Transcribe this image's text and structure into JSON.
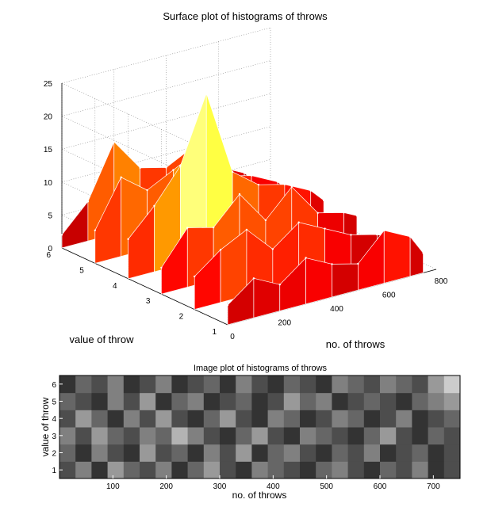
{
  "chart_data": [
    {
      "type": "surface",
      "title": "Surface plot of histograms of throws",
      "xlabel": "no. of throws",
      "ylabel": "value of throw",
      "zlabel": "",
      "xlim": [
        0,
        800
      ],
      "ylim": [
        1,
        6
      ],
      "zlim": [
        0,
        25
      ],
      "xticks": [
        "0",
        "200",
        "400",
        "600",
        "800"
      ],
      "yticks": [
        "1",
        "2",
        "3",
        "4",
        "5",
        "6"
      ],
      "zticks": [
        "0",
        "5",
        "10",
        "15",
        "20",
        "25"
      ],
      "grid": true,
      "colormap": "hot",
      "series": [
        {
          "y": 1,
          "x": [
            0,
            100,
            200,
            300,
            400,
            500,
            600,
            700,
            750
          ],
          "z": [
            3,
            6,
            4,
            7,
            5,
            4,
            8,
            6,
            3
          ]
        },
        {
          "y": 2,
          "x": [
            0,
            100,
            200,
            300,
            400,
            500,
            600,
            700,
            750
          ],
          "z": [
            5,
            8,
            10,
            6,
            9,
            7,
            5,
            4,
            3
          ]
        },
        {
          "y": 3,
          "x": [
            0,
            100,
            200,
            300,
            400,
            500,
            600,
            700,
            750
          ],
          "z": [
            4,
            9,
            8,
            12,
            7,
            11,
            6,
            5,
            4
          ]
        },
        {
          "y": 4,
          "x": [
            0,
            100,
            200,
            300,
            400,
            500,
            600,
            700,
            750
          ],
          "z": [
            6,
            10,
            15,
            25,
            12,
            9,
            8,
            6,
            4
          ]
        },
        {
          "y": 5,
          "x": [
            0,
            100,
            200,
            300,
            400,
            500,
            600,
            700,
            750
          ],
          "z": [
            5,
            12,
            9,
            11,
            13,
            8,
            7,
            5,
            3
          ]
        },
        {
          "y": 6,
          "x": [
            0,
            100,
            200,
            300,
            400,
            500,
            600,
            700,
            750
          ],
          "z": [
            2,
            6,
            14,
            9,
            8,
            10,
            6,
            4,
            2
          ]
        }
      ]
    },
    {
      "type": "heatmap",
      "title": "Image plot of histograms of throws",
      "xlabel": "no. of throws",
      "ylabel": "value of throw",
      "xlim": [
        0,
        750
      ],
      "ylim": [
        0.5,
        6.5
      ],
      "xticks": [
        "100",
        "200",
        "300",
        "400",
        "500",
        "600",
        "700"
      ],
      "yticks": [
        "1",
        "2",
        "3",
        "4",
        "5",
        "6"
      ],
      "colormap": "gray",
      "rows": [
        {
          "y": 1,
          "values": [
            0.3,
            0.5,
            0.2,
            0.6,
            0.4,
            0.3,
            0.5,
            0.2,
            0.4,
            0.6,
            0.3,
            0.2,
            0.5,
            0.4,
            0.3,
            0.2,
            0.4,
            0.5,
            0.3,
            0.2,
            0.4,
            0.3,
            0.5,
            0.2,
            0.3
          ]
        },
        {
          "y": 2,
          "values": [
            0.4,
            0.2,
            0.5,
            0.3,
            0.2,
            0.6,
            0.3,
            0.4,
            0.2,
            0.5,
            0.3,
            0.6,
            0.2,
            0.4,
            0.5,
            0.3,
            0.2,
            0.4,
            0.3,
            0.5,
            0.2,
            0.3,
            0.4,
            0.2,
            0.3
          ]
        },
        {
          "y": 3,
          "values": [
            0.5,
            0.3,
            0.6,
            0.4,
            0.3,
            0.5,
            0.4,
            0.7,
            0.5,
            0.3,
            0.2,
            0.4,
            0.6,
            0.3,
            0.2,
            0.5,
            0.4,
            0.3,
            0.2,
            0.4,
            0.6,
            0.3,
            0.2,
            0.4,
            0.3
          ]
        },
        {
          "y": 4,
          "values": [
            0.3,
            0.6,
            0.4,
            0.2,
            0.5,
            0.3,
            0.6,
            0.3,
            0.2,
            0.4,
            0.6,
            0.3,
            0.2,
            0.5,
            0.4,
            0.2,
            0.3,
            0.5,
            0.4,
            0.2,
            0.3,
            0.5,
            0.2,
            0.3,
            0.4
          ]
        },
        {
          "y": 5,
          "values": [
            0.4,
            0.3,
            0.2,
            0.5,
            0.3,
            0.6,
            0.2,
            0.4,
            0.5,
            0.2,
            0.3,
            0.4,
            0.2,
            0.3,
            0.6,
            0.4,
            0.5,
            0.2,
            0.3,
            0.4,
            0.3,
            0.2,
            0.4,
            0.5,
            0.6
          ]
        },
        {
          "y": 6,
          "values": [
            0.2,
            0.4,
            0.3,
            0.5,
            0.2,
            0.3,
            0.5,
            0.2,
            0.3,
            0.4,
            0.2,
            0.5,
            0.3,
            0.2,
            0.4,
            0.3,
            0.2,
            0.5,
            0.4,
            0.3,
            0.5,
            0.4,
            0.3,
            0.6,
            0.8
          ]
        }
      ]
    }
  ]
}
